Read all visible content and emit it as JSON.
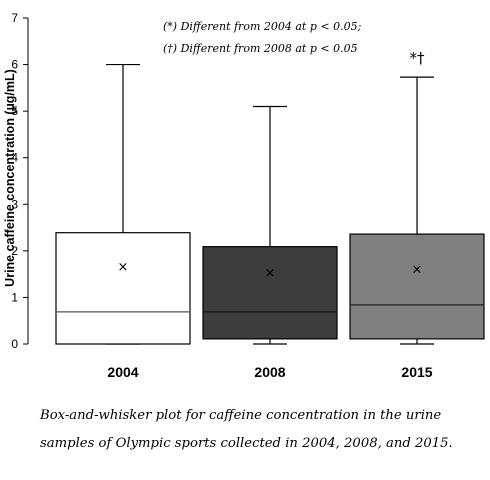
{
  "chart_data": {
    "type": "box",
    "categories": [
      "2004",
      "2008",
      "2015"
    ],
    "ylabel": "Urine caffeine concentration (µg/mL)",
    "xlabel": "",
    "ylim": [
      0,
      7
    ],
    "yticks": [
      "0",
      "1",
      "2",
      "3",
      "4",
      "5",
      "6",
      "7"
    ],
    "grid": false,
    "boxes": [
      {
        "category": "2004",
        "min": 0.0,
        "q1": 0.0,
        "median": 0.69,
        "q3": 2.39,
        "max": 6.0,
        "mean": 1.67,
        "color": "#ffffff",
        "median_color": "#555555",
        "significance": ""
      },
      {
        "category": "2008",
        "min": 0.0,
        "q1": 0.11,
        "median": 0.69,
        "q3": 2.09,
        "max": 5.1,
        "mean": 1.55,
        "color": "#3d3d3d",
        "median_color": "#111111",
        "significance": ""
      },
      {
        "category": "2015",
        "min": 0.0,
        "q1": 0.11,
        "median": 0.84,
        "q3": 2.36,
        "max": 5.73,
        "mean": 1.62,
        "color": "#808080",
        "median_color": "#222222",
        "significance": "*†"
      }
    ],
    "mean_marker": "×",
    "annotations": [
      "(*) Different from 2004 at p < 0.05;",
      "(†) Different from 2008 at p < 0.05"
    ]
  },
  "caption": {
    "line1": "Box-and-whisker plot for caffeine concentration in the urine",
    "line2": "samples of Olympic sports collected in 2004, 2008, and 2015."
  }
}
